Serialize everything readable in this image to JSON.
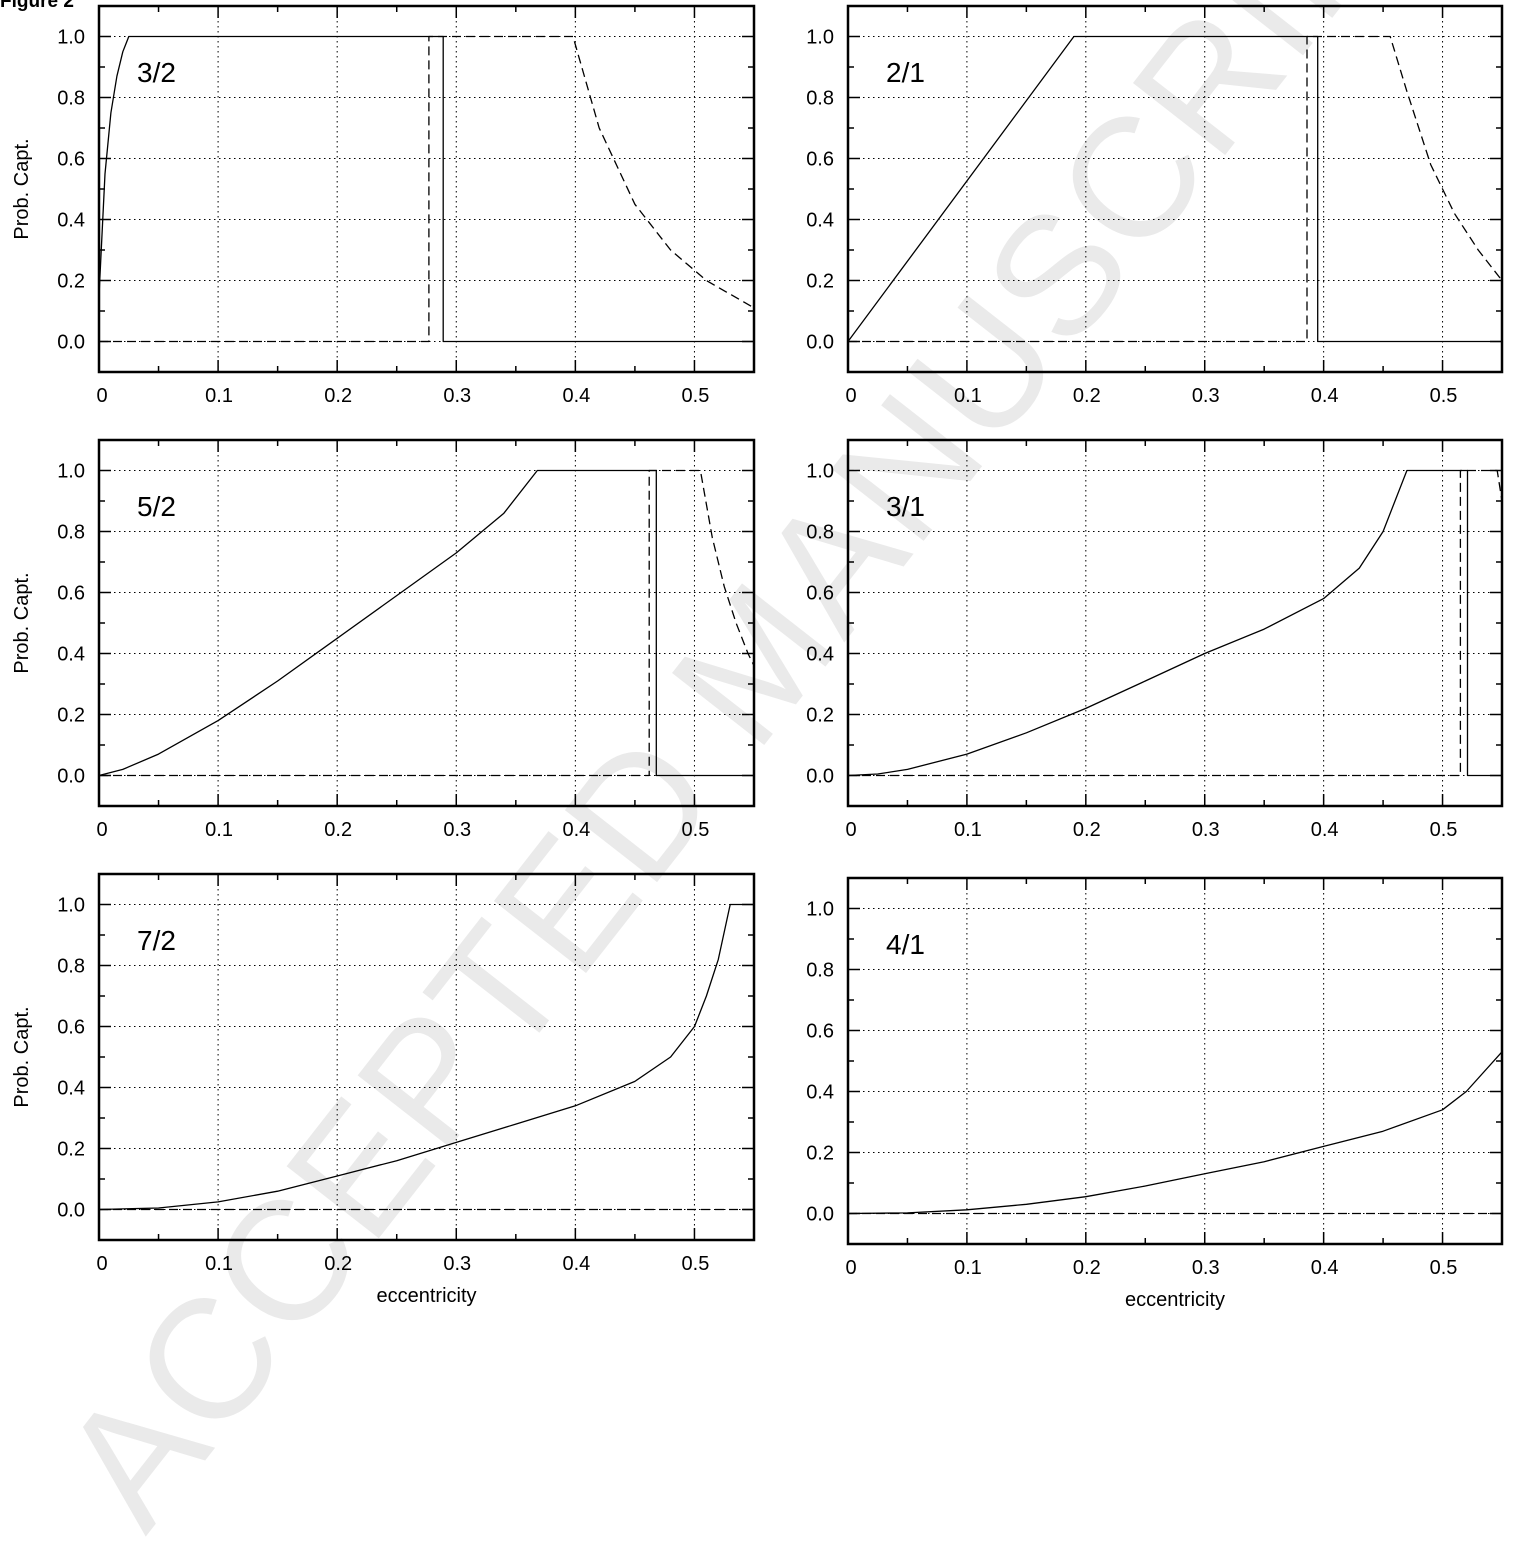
{
  "figure_label": "Figure 2",
  "watermark": "ACCEPTED MANUSCRIPT",
  "chart_data": [
    {
      "type": "line",
      "panel_label": "3/2",
      "xlabel": "",
      "ylabel": "Prob. Capt.",
      "xlim": [
        0,
        0.55
      ],
      "ylim": [
        -0.1,
        1.1
      ],
      "xticks": [
        0,
        0.1,
        0.2,
        0.3,
        0.4,
        0.5
      ],
      "xtick_labels": [
        "0",
        "0.1",
        "0.2",
        "0.3",
        "0.4",
        "0.5"
      ],
      "yticks": [
        0,
        0.2,
        0.4,
        0.6,
        0.8,
        1.0
      ],
      "ytick_labels": [
        "0.0",
        "0.2",
        "0.4",
        "0.6",
        "0.8",
        "1.0"
      ],
      "grid": true,
      "series": [
        {
          "style": "solid",
          "x": [
            0,
            0.005,
            0.01,
            0.015,
            0.02,
            0.025,
            0.289,
            0.289,
            0.55
          ],
          "y": [
            0.15,
            0.55,
            0.75,
            0.87,
            0.95,
            1.0,
            1.0,
            0,
            0
          ]
        },
        {
          "style": "dashed",
          "x": [
            0,
            0.277,
            0.277,
            0.398,
            0.42,
            0.45,
            0.48,
            0.51,
            0.55
          ],
          "y": [
            0,
            0,
            1.0,
            1.0,
            0.7,
            0.45,
            0.3,
            0.2,
            0.11
          ]
        }
      ]
    },
    {
      "type": "line",
      "panel_label": "2/1",
      "xlabel": "",
      "ylabel": "",
      "xlim": [
        0,
        0.55
      ],
      "ylim": [
        -0.1,
        1.1
      ],
      "xticks": [
        0,
        0.1,
        0.2,
        0.3,
        0.4,
        0.5
      ],
      "xtick_labels": [
        "0",
        "0.1",
        "0.2",
        "0.3",
        "0.4",
        "0.5"
      ],
      "yticks": [
        0,
        0.2,
        0.4,
        0.6,
        0.8,
        1.0
      ],
      "ytick_labels": [
        "0.0",
        "0.2",
        "0.4",
        "0.6",
        "0.8",
        "1.0"
      ],
      "grid": true,
      "series": [
        {
          "style": "solid",
          "x": [
            0,
            0.19,
            0.395,
            0.395,
            0.55
          ],
          "y": [
            0,
            1.0,
            1.0,
            0,
            0
          ]
        },
        {
          "style": "dashed",
          "x": [
            0,
            0.386,
            0.386,
            0.456,
            0.47,
            0.49,
            0.51,
            0.53,
            0.55
          ],
          "y": [
            0,
            0,
            1.0,
            1.0,
            0.82,
            0.58,
            0.42,
            0.3,
            0.2
          ]
        }
      ]
    },
    {
      "type": "line",
      "panel_label": "5/2",
      "xlabel": "",
      "ylabel": "Prob. Capt.",
      "xlim": [
        0,
        0.55
      ],
      "ylim": [
        -0.1,
        1.1
      ],
      "xticks": [
        0,
        0.1,
        0.2,
        0.3,
        0.4,
        0.5
      ],
      "xtick_labels": [
        "0",
        "0.1",
        "0.2",
        "0.3",
        "0.4",
        "0.5"
      ],
      "yticks": [
        0,
        0.2,
        0.4,
        0.6,
        0.8,
        1.0
      ],
      "ytick_labels": [
        "0.0",
        "0.2",
        "0.4",
        "0.6",
        "0.8",
        "1.0"
      ],
      "grid": true,
      "series": [
        {
          "style": "solid",
          "x": [
            0,
            0.02,
            0.05,
            0.1,
            0.15,
            0.2,
            0.25,
            0.3,
            0.34,
            0.368,
            0.468,
            0.468,
            0.55
          ],
          "y": [
            0,
            0.02,
            0.07,
            0.18,
            0.31,
            0.45,
            0.59,
            0.73,
            0.86,
            1.0,
            1.0,
            0,
            0
          ]
        },
        {
          "style": "dashed",
          "x": [
            0,
            0.462,
            0.462,
            0.505,
            0.515,
            0.525,
            0.535,
            0.545,
            0.55
          ],
          "y": [
            0,
            0,
            1.0,
            1.0,
            0.78,
            0.62,
            0.5,
            0.4,
            0.36
          ]
        }
      ]
    },
    {
      "type": "line",
      "panel_label": "3/1",
      "xlabel": "",
      "ylabel": "",
      "xlim": [
        0,
        0.55
      ],
      "ylim": [
        -0.1,
        1.1
      ],
      "xticks": [
        0,
        0.1,
        0.2,
        0.3,
        0.4,
        0.5
      ],
      "xtick_labels": [
        "0",
        "0.1",
        "0.2",
        "0.3",
        "0.4",
        "0.5"
      ],
      "yticks": [
        0,
        0.2,
        0.4,
        0.6,
        0.8,
        1.0
      ],
      "ytick_labels": [
        "0.0",
        "0.2",
        "0.4",
        "0.6",
        "0.8",
        "1.0"
      ],
      "grid": true,
      "series": [
        {
          "style": "solid",
          "x": [
            0,
            0.025,
            0.05,
            0.1,
            0.15,
            0.2,
            0.25,
            0.3,
            0.35,
            0.4,
            0.43,
            0.45,
            0.46,
            0.47,
            0.521,
            0.521,
            0.55
          ],
          "y": [
            0,
            0.005,
            0.02,
            0.07,
            0.14,
            0.22,
            0.31,
            0.4,
            0.48,
            0.58,
            0.68,
            0.8,
            0.9,
            1.0,
            1.0,
            0,
            0
          ]
        },
        {
          "style": "dashed",
          "x": [
            0,
            0.515,
            0.515,
            0.546,
            0.55
          ],
          "y": [
            0,
            0,
            1.0,
            1.0,
            0.9
          ]
        }
      ]
    },
    {
      "type": "line",
      "panel_label": "7/2",
      "xlabel": "eccentricity",
      "ylabel": "Prob. Capt.",
      "xlim": [
        0,
        0.55
      ],
      "ylim": [
        -0.1,
        1.1
      ],
      "xticks": [
        0,
        0.1,
        0.2,
        0.3,
        0.4,
        0.5
      ],
      "xtick_labels": [
        "0",
        "0.1",
        "0.2",
        "0.3",
        "0.4",
        "0.5"
      ],
      "yticks": [
        0,
        0.2,
        0.4,
        0.6,
        0.8,
        1.0
      ],
      "ytick_labels": [
        "0.0",
        "0.2",
        "0.4",
        "0.6",
        "0.8",
        "1.0"
      ],
      "grid": true,
      "series": [
        {
          "style": "solid",
          "x": [
            0,
            0.05,
            0.1,
            0.15,
            0.2,
            0.25,
            0.3,
            0.35,
            0.4,
            0.45,
            0.48,
            0.5,
            0.51,
            0.52,
            0.53,
            0.55
          ],
          "y": [
            0,
            0.005,
            0.025,
            0.06,
            0.11,
            0.16,
            0.22,
            0.28,
            0.34,
            0.42,
            0.5,
            0.6,
            0.7,
            0.82,
            1.0,
            1.0
          ]
        },
        {
          "style": "dashed",
          "x": [
            0,
            0.55
          ],
          "y": [
            0,
            0
          ]
        }
      ]
    },
    {
      "type": "line",
      "panel_label": "4/1",
      "xlabel": "eccentricity",
      "ylabel": "",
      "xlim": [
        0,
        0.55
      ],
      "ylim": [
        -0.1,
        1.1
      ],
      "xticks": [
        0,
        0.1,
        0.2,
        0.3,
        0.4,
        0.5
      ],
      "xtick_labels": [
        "0",
        "0.1",
        "0.2",
        "0.3",
        "0.4",
        "0.5"
      ],
      "yticks": [
        0,
        0.2,
        0.4,
        0.6,
        0.8,
        1.0
      ],
      "ytick_labels": [
        "0.0",
        "0.2",
        "0.4",
        "0.6",
        "0.8",
        "1.0"
      ],
      "grid": true,
      "series": [
        {
          "style": "solid",
          "x": [
            0,
            0.05,
            0.1,
            0.15,
            0.2,
            0.25,
            0.3,
            0.35,
            0.4,
            0.45,
            0.5,
            0.52,
            0.55
          ],
          "y": [
            0,
            0.002,
            0.012,
            0.03,
            0.055,
            0.09,
            0.13,
            0.17,
            0.22,
            0.27,
            0.34,
            0.4,
            0.53
          ]
        },
        {
          "style": "dashed",
          "x": [
            0,
            0.55
          ],
          "y": [
            0,
            0
          ]
        }
      ]
    }
  ]
}
